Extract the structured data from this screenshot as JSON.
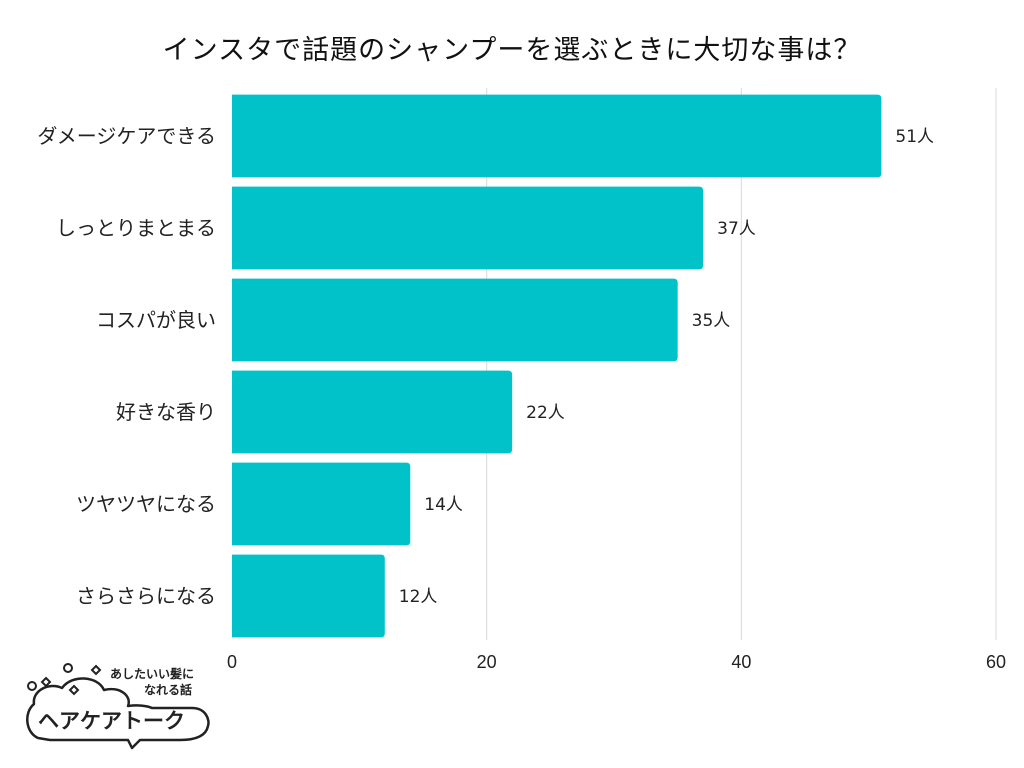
{
  "chart_data": {
    "type": "bar",
    "orientation": "horizontal",
    "title": "インスタで話題のシャンプーを選ぶときに大切な事は？",
    "categories": [
      "ダメージケアできる",
      "しっとりまとまる",
      "コスパが良い",
      "好きな香り",
      "ツヤツヤになる",
      "さらさらになる"
    ],
    "values": [
      51,
      37,
      35,
      22,
      14,
      12
    ],
    "value_labels": [
      "51人",
      "37人",
      "35人",
      "22人",
      "14人",
      "12人"
    ],
    "xlim": [
      0,
      60
    ],
    "xticks": [
      "0",
      "20",
      "40",
      "60"
    ],
    "xtick_values": [
      0,
      20,
      40,
      60
    ],
    "grid": "vertical",
    "bar_color": "#00c2c8"
  },
  "logo": {
    "tagline_line1": "あしたいい髪に",
    "tagline_line2": "なれる話",
    "name": "ヘアケアトーク"
  }
}
